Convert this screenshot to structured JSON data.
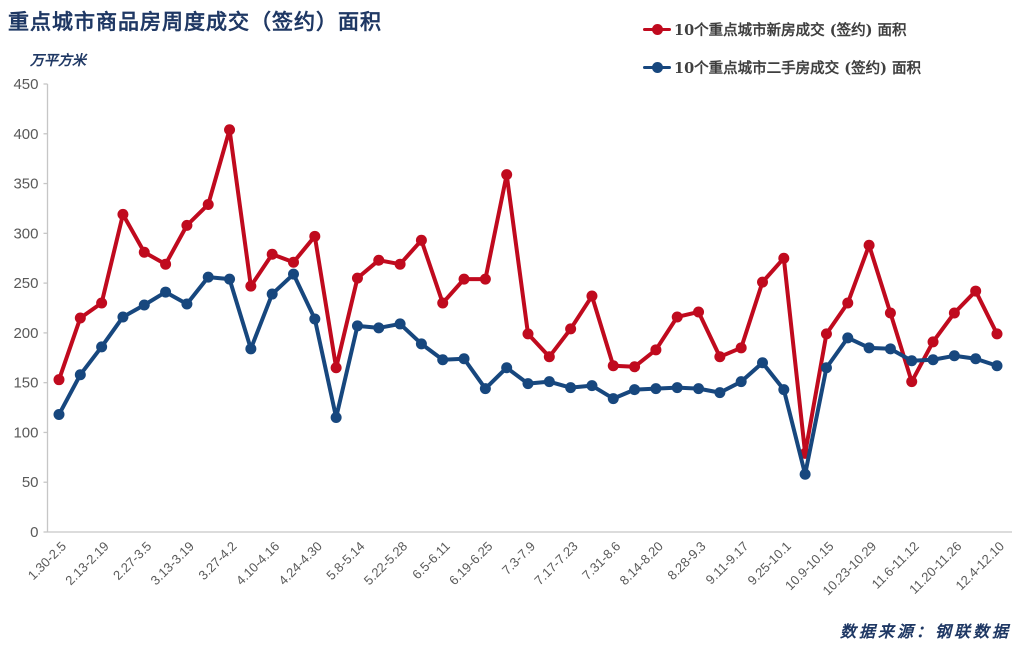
{
  "header": {
    "title": "重点城市商品房周度成交（签约）面积",
    "unit_label": "万平方米"
  },
  "legend": [
    {
      "label": "10个重点城市新房成交 (签约) 面积",
      "color": "#c00a1e"
    },
    {
      "label": "10个重点城市二手房成交 (签约) 面积",
      "color": "#17477e"
    }
  ],
  "footer": {
    "source": "数据来源：钢联数据"
  },
  "colors": {
    "title": "#1f3864",
    "source": "#1f3864",
    "axis_line": "#c6c6c6",
    "tick_label": "#595959",
    "series_new_homes": "#c00a1e",
    "series_secondhand_homes": "#17477e",
    "background": "#ffffff"
  },
  "chart_data": {
    "type": "line",
    "title": "重点城市商品房周度成交（签约）面积",
    "ylabel": "万平方米",
    "ylim": [
      0,
      450
    ],
    "y_ticks": [
      0,
      50,
      100,
      150,
      200,
      250,
      300,
      350,
      400,
      450
    ],
    "grid": false,
    "legend_position": "top-right",
    "marker": "circle",
    "n_points": 45,
    "tick_every": 2,
    "x_tick_labels": [
      "1.30-2.5",
      "2.13-2.19",
      "2.27-3.5",
      "3.13-3.19",
      "3.27-4.2",
      "4.10-4.16",
      "4.24-4.30",
      "5.8-5.14",
      "5.22-5.28",
      "6.5-6.11",
      "6.19-6.25",
      "7.3-7.9",
      "7.17-7.23",
      "7.31-8.6",
      "8.14-8.20",
      "8.28-9.3",
      "9.11-9.17",
      "9.25-10.1",
      "10.9-10.15",
      "10.23-10.29",
      "11.6-11.12",
      "11.20-11.26",
      "12.4-12.10"
    ],
    "series": [
      {
        "name": "10个重点城市新房成交 (签约) 面积",
        "color": "#c00a1e",
        "values": [
          153,
          215,
          230,
          319,
          281,
          269,
          308,
          329,
          404,
          247,
          279,
          271,
          297,
          165,
          255,
          273,
          269,
          293,
          230,
          254,
          254,
          359,
          199,
          176,
          204,
          237,
          167,
          166,
          183,
          216,
          221,
          176,
          185,
          251,
          275,
          79,
          199,
          230,
          288,
          220,
          151,
          191,
          220,
          242,
          199
        ]
      },
      {
        "name": "10个重点城市二手房成交 (签约) 面积",
        "color": "#17477e",
        "values": [
          118,
          158,
          186,
          216,
          228,
          241,
          229,
          256,
          254,
          184,
          239,
          259,
          214,
          115,
          207,
          205,
          209,
          189,
          173,
          174,
          144,
          165,
          149,
          151,
          145,
          147,
          134,
          143,
          144,
          145,
          144,
          140,
          151,
          170,
          143,
          58,
          165,
          195,
          185,
          184,
          172,
          173,
          177,
          174,
          167
        ]
      }
    ]
  }
}
